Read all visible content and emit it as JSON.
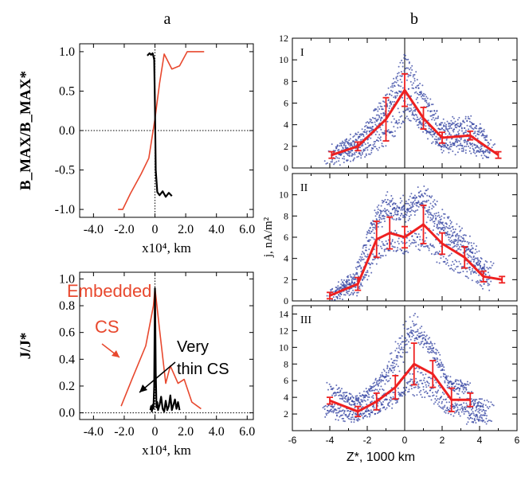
{
  "panel_labels": {
    "a": "a",
    "b": "b"
  },
  "chart_data": [
    {
      "id": "a_top",
      "type": "line",
      "ylabel": "B_MAX/B_MAX*",
      "xlabel": "x10⁴, km",
      "xlim": [
        -4.9,
        6.4
      ],
      "ylim": [
        -1.1,
        1.1
      ],
      "xticks": [
        "-4.0",
        "-2.0",
        "0",
        "2.0",
        "4.0",
        "6.0"
      ],
      "xtick_values": [
        -4,
        -2,
        0,
        2,
        4,
        6
      ],
      "yticks": [
        "-1.0",
        "-0.5",
        "0.0",
        "0.5",
        "1.0"
      ],
      "ytick_values": [
        -1,
        -0.5,
        0,
        0.5,
        1
      ],
      "colors": {
        "embedded": "#e8482e",
        "thin": "#000000"
      },
      "series": [
        {
          "color": "embedded",
          "x": [
            -2.4,
            -2.1,
            -1.6,
            -0.9,
            -0.4,
            0.0,
            0.3,
            0.6,
            1.1,
            1.6,
            2.1,
            2.6,
            3.2
          ],
          "y": [
            -1.0,
            -1.0,
            -0.8,
            -0.55,
            -0.35,
            0.15,
            0.6,
            0.97,
            0.78,
            0.82,
            1.0,
            1.0,
            1.0
          ]
        },
        {
          "color": "thin",
          "x": [
            -0.5,
            -0.35,
            -0.25,
            -0.15,
            -0.05,
            0.0,
            0.05,
            0.15,
            0.3,
            0.5,
            0.7,
            0.9,
            1.1
          ],
          "y": [
            0.95,
            0.98,
            0.96,
            0.98,
            0.9,
            0.3,
            -0.5,
            -0.78,
            -0.82,
            -0.77,
            -0.84,
            -0.79,
            -0.83
          ]
        }
      ]
    },
    {
      "id": "a_bottom",
      "type": "line",
      "ylabel": "J/J*",
      "xlabel": "x10⁴, km",
      "xlim": [
        -4.9,
        6.4
      ],
      "ylim": [
        -0.05,
        1.05
      ],
      "xticks": [
        "-4.0",
        "-2.0",
        "0",
        "2.0",
        "4.0",
        "6.0"
      ],
      "xtick_values": [
        -4,
        -2,
        0,
        2,
        4,
        6
      ],
      "yticks": [
        "0.0",
        "0.2",
        "0.4",
        "0.6",
        "0.8",
        "1.0"
      ],
      "ytick_values": [
        0,
        0.2,
        0.4,
        0.6,
        0.8,
        1.0
      ],
      "colors": {
        "embedded": "#e8482e",
        "thin": "#000000"
      },
      "annotations": {
        "embedded_1": "Embedded",
        "embedded_2": "CS",
        "thin_1": "Very",
        "thin_2": "thin CS"
      },
      "series": [
        {
          "color": "embedded",
          "x": [
            -2.2,
            -1.5,
            -0.6,
            -0.1,
            0.0,
            0.3,
            0.7,
            1.0,
            1.5,
            1.9,
            2.4,
            3.0
          ],
          "y": [
            0.05,
            0.25,
            0.5,
            0.8,
            0.93,
            0.62,
            0.22,
            0.35,
            0.22,
            0.25,
            0.08,
            0.03
          ]
        },
        {
          "color": "thin",
          "x": [
            -0.3,
            -0.25,
            -0.2,
            -0.15,
            -0.1,
            -0.05,
            0.0,
            0.05,
            0.1,
            0.15,
            0.2,
            0.3,
            0.4,
            0.5,
            0.6,
            0.7,
            0.8,
            0.9,
            1.0,
            1.1,
            1.2,
            1.3,
            1.4,
            1.5,
            1.6
          ],
          "y": [
            0.02,
            0.05,
            0.01,
            0.06,
            0.03,
            0.2,
            0.93,
            0.3,
            0.04,
            0.08,
            0.02,
            0.06,
            0.12,
            0.03,
            0.01,
            0.09,
            0.02,
            0.05,
            0.13,
            0.02,
            0.06,
            0.1,
            0.03,
            0.08,
            0.02
          ]
        }
      ]
    },
    {
      "id": "b_I",
      "type": "line",
      "panel": "I",
      "xlim": [
        -6,
        6
      ],
      "ylim": [
        0,
        12
      ],
      "yticks": [
        "0",
        "2",
        "4",
        "6",
        "8",
        "10",
        "12"
      ],
      "ytick_values": [
        0,
        2,
        4,
        6,
        8,
        10,
        12
      ],
      "series": [
        {
          "color": "mean",
          "x": [
            -3.9,
            -2.5,
            -1.0,
            0.0,
            1.0,
            2.0,
            3.5,
            5.0
          ],
          "y": [
            1.2,
            2.0,
            4.5,
            7.2,
            4.6,
            2.8,
            3.0,
            1.2
          ],
          "err": [
            0.3,
            0.4,
            2.0,
            1.5,
            1.0,
            0.5,
            0.4,
            0.3
          ]
        }
      ]
    },
    {
      "id": "b_II",
      "type": "line",
      "panel": "II",
      "ylabel": "j, nA/m²",
      "xlim": [
        -6,
        6
      ],
      "ylim": [
        0,
        12
      ],
      "yticks": [
        "0",
        "2",
        "4",
        "6",
        "8",
        "10"
      ],
      "ytick_values": [
        0,
        2,
        4,
        6,
        8,
        10
      ],
      "series": [
        {
          "color": "mean",
          "x": [
            -4.0,
            -2.5,
            -1.5,
            -0.8,
            0.0,
            1.0,
            2.0,
            3.2,
            4.2,
            5.2
          ],
          "y": [
            0.5,
            1.6,
            5.8,
            6.4,
            6.0,
            7.2,
            5.4,
            4.1,
            2.3,
            2.0
          ],
          "err": [
            0.3,
            0.6,
            1.7,
            1.5,
            1.0,
            1.8,
            1.0,
            1.0,
            0.5,
            0.3
          ]
        }
      ]
    },
    {
      "id": "b_III",
      "type": "line",
      "panel": "III",
      "xlabel": "Z*, 1000 km",
      "xlim": [
        -6,
        6
      ],
      "ylim": [
        0,
        15
      ],
      "xticks": [
        "-6",
        "-4",
        "-2",
        "0",
        "2",
        "4",
        "6"
      ],
      "xtick_values": [
        -6,
        -4,
        -2,
        0,
        2,
        4,
        6
      ],
      "yticks": [
        "2",
        "4",
        "6",
        "8",
        "10",
        "12",
        "14"
      ],
      "ytick_values": [
        2,
        4,
        6,
        8,
        10,
        12,
        14
      ],
      "series": [
        {
          "color": "mean",
          "x": [
            -4.0,
            -2.5,
            -1.5,
            -0.5,
            0.5,
            1.5,
            2.5,
            3.5
          ],
          "y": [
            3.6,
            2.3,
            3.5,
            5.2,
            8.0,
            6.8,
            3.7,
            3.7
          ],
          "err": [
            0.4,
            0.6,
            1.0,
            1.4,
            2.5,
            1.6,
            1.4,
            0.8
          ]
        }
      ]
    }
  ],
  "colors": {
    "mean": "#ee2020",
    "scatter": "#3040a0",
    "embedded": "#e8482e",
    "thin": "#000000"
  }
}
